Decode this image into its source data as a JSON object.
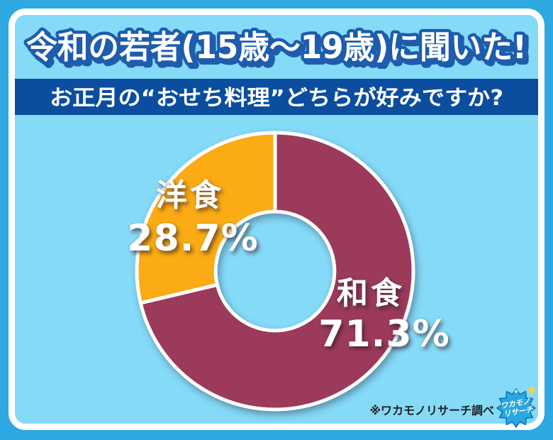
{
  "page": {
    "background_color": "#2EA8E0",
    "panel_color": "#85DAF8",
    "frame_color": "#FFFFFF"
  },
  "header": {
    "title": "令和の若者(15歳〜19歳)に聞いた!",
    "title_fill_color": "#FFFFFF",
    "title_outline_color": "#1E5CAD",
    "question": "お正月の“おせち料理”どちらが好みですか?",
    "question_bar_color": "#0B4D9F",
    "question_text_color": "#FFFFFF"
  },
  "chart_data": {
    "type": "pie",
    "subtype": "donut",
    "title": "お正月の“おせち料理”どちらが好みですか?",
    "categories": [
      "和食",
      "洋食"
    ],
    "values": [
      71.3,
      28.7
    ],
    "unit": "%",
    "start_angle_deg": -90,
    "direction": "clockwise",
    "inner_radius_ratio": 0.43,
    "legend_position": "on-chart",
    "grid": false,
    "slices": [
      {
        "label": "和食",
        "value": 71.3,
        "display_percent": "71.3%",
        "color": "#9C3A5C",
        "name_en": "japanese-food"
      },
      {
        "label": "洋食",
        "value": 28.7,
        "display_percent": "28.7%",
        "color": "#FBAB13",
        "name_en": "western-food"
      }
    ]
  },
  "footer": {
    "source_note": "※ワカモノリサーチ調べ",
    "logo": {
      "line1": "ワカモノ",
      "line2": "リサーチ",
      "badge_color": "#2AA7E0",
      "sparkle_color": "#FFD23E"
    }
  }
}
